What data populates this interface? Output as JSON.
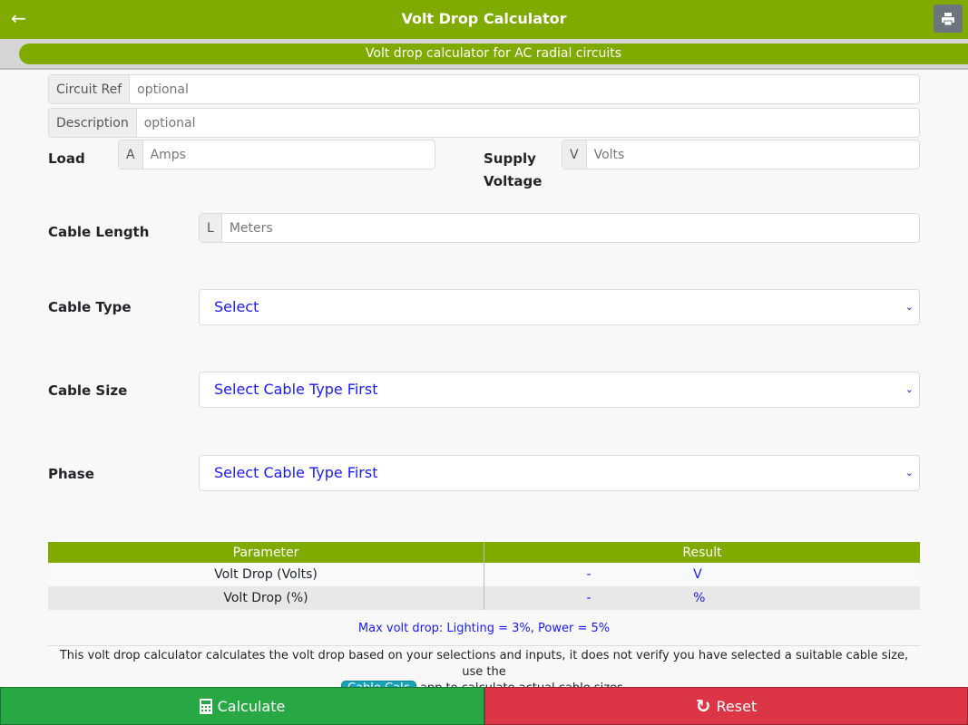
{
  "header": {
    "title": "Volt Drop Calculator",
    "back_icon": "arrow-left-icon",
    "print_icon": "printer-icon"
  },
  "subheader": "Volt drop calculator for AC radial circuits",
  "fields": {
    "circuit_ref": {
      "label": "Circuit Ref",
      "placeholder": "optional",
      "value": ""
    },
    "description": {
      "label": "Description",
      "placeholder": "optional",
      "value": ""
    },
    "load": {
      "label": "Load",
      "prefix": "A",
      "placeholder": "Amps",
      "value": ""
    },
    "supply_voltage": {
      "label": "Supply Voltage",
      "prefix": "V",
      "placeholder": "Volts",
      "value": ""
    },
    "cable_length": {
      "label": "Cable Length",
      "prefix": "L",
      "placeholder": "Meters",
      "value": ""
    },
    "cable_type": {
      "label": "Cable Type",
      "selected": "Select"
    },
    "cable_size": {
      "label": "Cable Size",
      "selected": "Select Cable Type First"
    },
    "phase": {
      "label": "Phase",
      "selected": "Select Cable Type First"
    }
  },
  "results": {
    "headers": [
      "Parameter",
      "Result"
    ],
    "rows": [
      {
        "param": "Volt Drop (Volts)",
        "value": "-",
        "unit": "V"
      },
      {
        "param": "Volt Drop (%)",
        "value": "-",
        "unit": "%"
      }
    ]
  },
  "note": "Max volt drop: Lighting = 3%, Power = 5%",
  "disclaimer": {
    "before": "This volt drop calculator calculates the volt drop based on your selections and inputs, it does not verify you have selected a suitable cable size, use the",
    "link": "Cable Calc",
    "after": "app to calculate actual cable sizes."
  },
  "buttons": {
    "calculate": "Calculate",
    "reset": "Reset"
  },
  "colors": {
    "primary": "#7faa00",
    "calculate": "#28a745",
    "reset": "#dc3545",
    "accent_text": "#1a1aff"
  }
}
